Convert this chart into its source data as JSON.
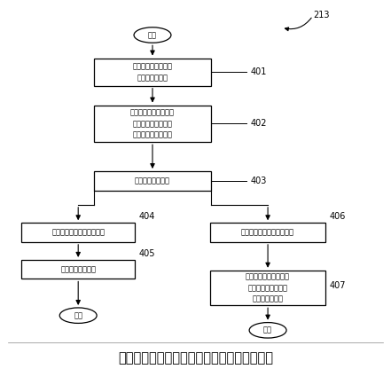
{
  "figure_width": 4.41,
  "figure_height": 4.16,
  "dpi": 100,
  "bg_color": "#ffffff",
  "figure_label": "213",
  "caption": "图为根据本发明的实施例的微差偏移确定例程",
  "text_color": "#000000",
  "box_edge_color": "#000000",
  "arrow_color": "#000000",
  "font_size_box": 6.0,
  "font_size_caption": 10.5,
  "font_size_label": 7.0,
  "start_text": "开始",
  "end_text": "结束",
  "box401_text": "从第一和第二流量计\n接收传感器信号",
  "box402_text": "根据第一流量计确定第\n一流率并且根据第二\n流量计确定第二流率",
  "box403_text": "确定微差零点偏移",
  "box404_text": "确定一个或者多个操作条件",
  "box405_text": "产生偏移相互关系",
  "box406_text": "接收随后的第一传感器信号",
  "box407_text": "使用随后的第一传感器\n信号和微差零点偏移\n产生补偿的流率"
}
